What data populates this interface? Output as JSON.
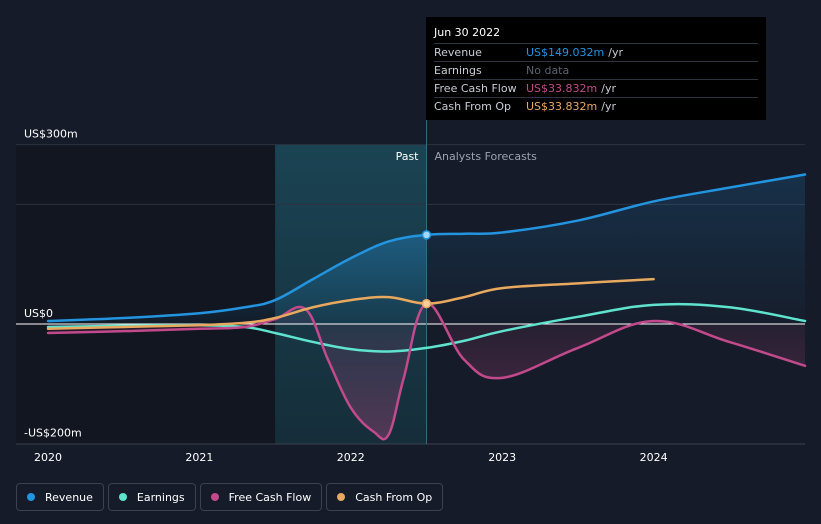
{
  "colors": {
    "revenue": "#2394df",
    "earnings": "#5fe3cf",
    "free_cash_flow": "#c24a8c",
    "cash_from_op": "#e8a95f",
    "background": "#151b28",
    "highlight": "#1a3a4c"
  },
  "tooltip": {
    "date": "Jun 30 2022",
    "rows": [
      {
        "label": "Revenue",
        "value": "US$149.032m",
        "unit": "/yr",
        "color": "#2394df"
      },
      {
        "label": "Earnings",
        "value": "No data",
        "unit": "",
        "color": "#5c6270"
      },
      {
        "label": "Free Cash Flow",
        "value": "US$33.832m",
        "unit": "/yr",
        "color": "#c24a8c"
      },
      {
        "label": "Cash From Op",
        "value": "US$33.832m",
        "unit": "/yr",
        "color": "#e8a95f"
      }
    ]
  },
  "legend": [
    {
      "label": "Revenue",
      "color": "#2394df"
    },
    {
      "label": "Earnings",
      "color": "#5fe3cf"
    },
    {
      "label": "Free Cash Flow",
      "color": "#c24a8c"
    },
    {
      "label": "Cash From Op",
      "color": "#e8a95f"
    }
  ],
  "chart_data": {
    "type": "line",
    "title": "",
    "xlabel": "",
    "ylabel": "",
    "xlim": [
      2020.0,
      2025.0
    ],
    "ylim": [
      -200,
      300
    ],
    "y_tick_labels": [
      {
        "value": 300,
        "label": "US$300m"
      },
      {
        "value": 0,
        "label": "US$0"
      },
      {
        "value": -200,
        "label": "-US$200m"
      }
    ],
    "x_ticks": [
      {
        "value": 2020,
        "label": "2020"
      },
      {
        "value": 2021,
        "label": "2021"
      },
      {
        "value": 2022,
        "label": "2022"
      },
      {
        "value": 2023,
        "label": "2023"
      },
      {
        "value": 2024,
        "label": "2024"
      }
    ],
    "past_label": "Past",
    "forecast_label": "Analysts Forecasts",
    "highlight_range": [
      2021.5,
      2022.5
    ],
    "divider_x": 2022.5,
    "marker_x": 2022.5,
    "series": [
      {
        "name": "Revenue",
        "key": "revenue",
        "x": [
          2020.0,
          2020.5,
          2021.0,
          2021.3,
          2021.5,
          2021.75,
          2022.0,
          2022.25,
          2022.5,
          2022.75,
          2023.0,
          2023.5,
          2024.0,
          2024.5,
          2025.0
        ],
        "y": [
          5,
          10,
          18,
          28,
          40,
          75,
          110,
          138,
          149,
          151,
          153,
          173,
          205,
          228,
          250
        ]
      },
      {
        "name": "Earnings",
        "key": "earnings",
        "x": [
          2020.0,
          2020.5,
          2021.0,
          2021.3,
          2021.5,
          2021.75,
          2022.0,
          2022.25,
          2022.5,
          2022.75,
          2023.0,
          2023.5,
          2024.0,
          2024.5,
          2025.0
        ],
        "y": [
          -5,
          -3,
          -2,
          -5,
          -15,
          -30,
          -42,
          -46,
          -40,
          -28,
          -12,
          12,
          32,
          28,
          5
        ]
      },
      {
        "name": "Free Cash Flow",
        "key": "free_cash_flow",
        "x": [
          2020.0,
          2020.5,
          2021.0,
          2021.3,
          2021.5,
          2021.7,
          2021.85,
          2022.0,
          2022.15,
          2022.25,
          2022.35,
          2022.5,
          2022.75,
          2023.0,
          2023.5,
          2024.0,
          2024.5,
          2025.0
        ],
        "y": [
          -15,
          -12,
          -8,
          -5,
          8,
          25,
          -60,
          -140,
          -180,
          -185,
          -90,
          34,
          -60,
          -90,
          -40,
          5,
          -30,
          -70
        ]
      },
      {
        "name": "Cash From Op",
        "key": "cash_from_op",
        "x": [
          2020.0,
          2020.5,
          2021.0,
          2021.3,
          2021.5,
          2021.75,
          2022.0,
          2022.25,
          2022.5,
          2022.75,
          2023.0,
          2023.5,
          2024.0
        ],
        "y": [
          -8,
          -5,
          -2,
          2,
          10,
          28,
          40,
          45,
          34,
          45,
          60,
          68,
          75
        ]
      }
    ]
  }
}
